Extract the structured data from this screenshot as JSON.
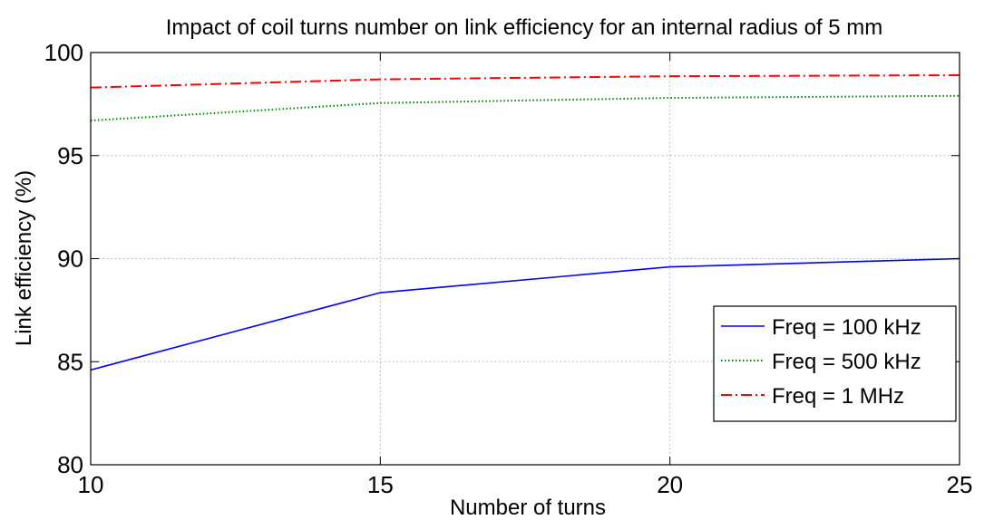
{
  "chart_data": {
    "type": "line",
    "title": "Impact of coil turns number on link efficiency for an internal radius of 5 mm",
    "xlabel": "Number of turns",
    "ylabel": "Link efficiency (%)",
    "xlim": [
      10,
      25
    ],
    "ylim": [
      80,
      100
    ],
    "xticks": [
      10,
      15,
      20,
      25
    ],
    "yticks": [
      80,
      85,
      90,
      95,
      100
    ],
    "grid": true,
    "legend_position": "right",
    "x": [
      10,
      15,
      20,
      25
    ],
    "series": [
      {
        "name": "Freq = 100 kHz",
        "values": [
          84.6,
          88.35,
          89.6,
          90.0
        ],
        "color": "#0000ff",
        "style": "solid"
      },
      {
        "name": "Freq = 500 kHz",
        "values": [
          96.7,
          97.55,
          97.8,
          97.9
        ],
        "color": "#008000",
        "style": "dotted"
      },
      {
        "name": "Freq = 1 MHz",
        "values": [
          98.3,
          98.7,
          98.85,
          98.9
        ],
        "color": "#ff0000",
        "style": "dashdot"
      }
    ]
  }
}
